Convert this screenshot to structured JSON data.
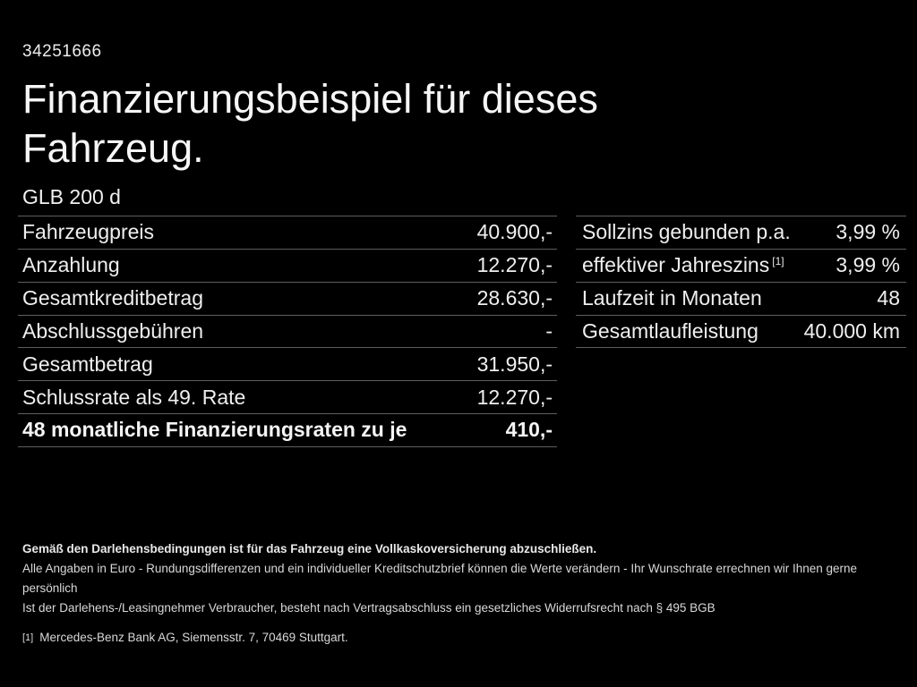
{
  "page": {
    "background_color": "#000000",
    "text_color": "#f0f0f0",
    "separator_color": "#5e5e5e"
  },
  "header": {
    "document_id": "34251666",
    "title_line1": "Finanzierungsbeispiel für dieses",
    "title_line2": "Fahrzeug.",
    "model": "GLB 200 d"
  },
  "finance_table": {
    "rows": [
      {
        "label": "Fahrzeugpreis",
        "value": "40.900,-"
      },
      {
        "label": "Anzahlung",
        "value": "12.270,-"
      },
      {
        "label": "Gesamtkreditbetrag",
        "value": "28.630,-"
      },
      {
        "label": "Abschlussgebühren",
        "value": "-"
      },
      {
        "label": "Gesamtbetrag",
        "value": "31.950,-"
      },
      {
        "label": "Schlussrate als 49. Rate",
        "value": "12.270,-"
      },
      {
        "label": "48 monatliche Finanzierungsraten zu je",
        "value": "410,-"
      }
    ]
  },
  "conditions_table": {
    "rows": [
      {
        "label": "Sollzins gebunden p.a.",
        "value": "3,99 %"
      },
      {
        "label": "effektiver Jahreszins",
        "footnote_marker": "[1]",
        "value": "3,99 %"
      },
      {
        "label": "Laufzeit in Monaten",
        "value": "48"
      },
      {
        "label": "Gesamtlaufleistung",
        "value": "40.000 km"
      }
    ]
  },
  "legal": {
    "insurance_note": "Gemäß den Darlehensbedingungen ist für das Fahrzeug eine Vollkaskoversicherung abzuschließen.",
    "disclaimer_line1": "Alle Angaben in Euro - Rundungsdifferenzen und ein individueller Kreditschutzbrief können die Werte verändern - Ihr Wunschrate errechnen wir Ihnen gerne persönlich",
    "disclaimer_line2": "Ist der Darlehens-/Leasingnehmer Verbraucher, besteht nach Vertragsabschluss ein gesetzliches Widerrufsrecht nach § 495 BGB",
    "footnote_marker": "[1]",
    "footnote_text": "Mercedes-Benz Bank AG, Siemensstr. 7, 70469 Stuttgart."
  }
}
